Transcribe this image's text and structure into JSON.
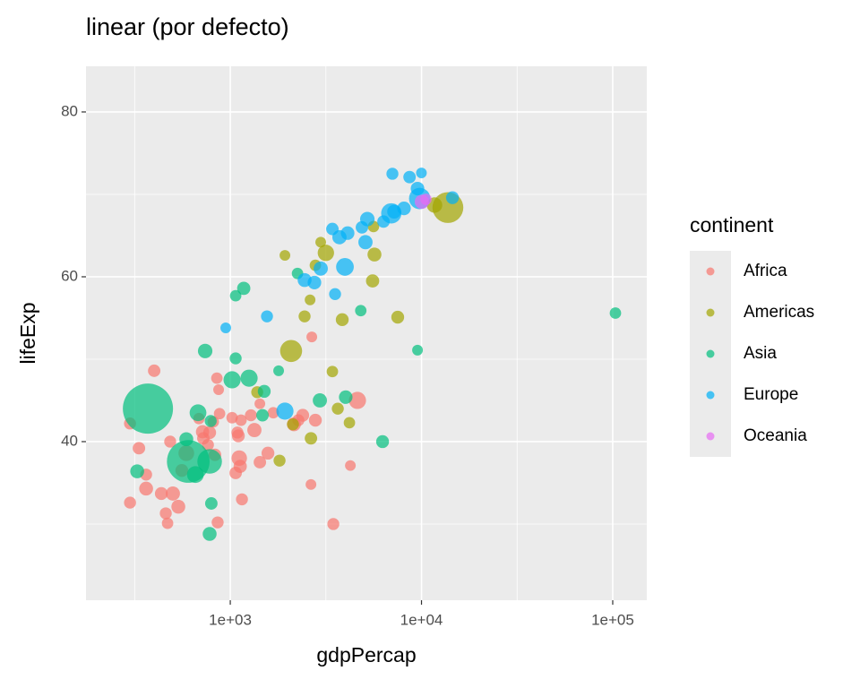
{
  "chart_data": {
    "type": "scatter",
    "title": "linear (por defecto)",
    "x_label": "gdpPercap",
    "y_label": "lifeExp",
    "legend_title": "continent",
    "legend_position": "right",
    "x_log_scale": true,
    "grid": true,
    "xlim": [
      176,
      150700
    ],
    "ylim": [
      20.76,
      85.54
    ],
    "xticks": [
      {
        "value": 1000,
        "label": "1e+03"
      },
      {
        "value": 10000,
        "label": "1e+04"
      },
      {
        "value": 100000,
        "label": "1e+05"
      }
    ],
    "yticks": [
      40,
      60,
      80
    ],
    "x_minor_ticks": [
      316.23,
      3162.3,
      31623
    ],
    "y_minor_ticks": [
      30,
      50,
      70
    ],
    "series": [
      {
        "name": "Africa",
        "color": "#F8766D",
        "x": [
          299,
          299,
          333,
          363,
          363,
          400,
          436,
          460,
          470,
          485,
          501,
          535,
          558,
          589,
          686,
          716,
          723,
          764,
          780,
          815,
          832,
          851,
          859,
          869,
          879,
          1022,
          1067,
          1090,
          1102,
          1114,
          1127,
          1138,
          1151,
          1282,
          1337,
          1428,
          1428,
          1574,
          1679,
          2152,
          2270,
          2393,
          2642,
          2669,
          2786,
          3459,
          4246,
          4624
        ],
        "values": [
          42.2,
          32.6,
          39.2,
          36.0,
          34.3,
          48.6,
          33.7,
          31.3,
          30.1,
          40.0,
          33.7,
          32.1,
          36.5,
          38.6,
          42.8,
          41.2,
          40.4,
          39.6,
          41.1,
          42.4,
          38.4,
          47.7,
          30.2,
          46.3,
          43.4,
          42.9,
          36.2,
          41.1,
          40.7,
          38.0,
          37.0,
          42.6,
          33.0,
          43.2,
          41.4,
          37.5,
          44.6,
          38.6,
          43.5,
          42.1,
          42.6,
          43.2,
          34.8,
          52.7,
          42.6,
          30.0,
          37.1,
          45.0
        ],
        "size": [
          3,
          3,
          4,
          3,
          8,
          4,
          5,
          3,
          2,
          3,
          9,
          8,
          5,
          15,
          2,
          6,
          4,
          3,
          5,
          2,
          4,
          2,
          3,
          1,
          2,
          2,
          4,
          3,
          5,
          14,
          6,
          2,
          3,
          3,
          9,
          4,
          1,
          5,
          2,
          8,
          3,
          5,
          1,
          1,
          5,
          3,
          1,
          22
        ]
      },
      {
        "name": "Americas",
        "color": "#A3A500",
        "x": [
          1383,
          1810,
          1931,
          2080,
          2127,
          2447,
          2614,
          2642,
          2786,
          2972,
          3162,
          3420,
          3850,
          3650,
          4198,
          5675,
          5550,
          5610,
          7510,
          11700,
          13740
        ],
        "values": [
          46.0,
          37.7,
          62.6,
          51.0,
          42.1,
          55.2,
          57.2,
          40.4,
          61.4,
          64.2,
          62.9,
          48.5,
          54.8,
          44.0,
          42.3,
          62.7,
          59.5,
          66.1,
          55.1,
          68.7,
          68.4
        ],
        "size": [
          3,
          3,
          1,
          56,
          3,
          3,
          1,
          4,
          2,
          1,
          18,
          2,
          5,
          3,
          2,
          8,
          6,
          2,
          5,
          14,
          157
        ]
      },
      {
        "name": "Asia",
        "color": "#00BF7D",
        "x": [
          326,
          371,
          603,
          657,
          589,
          678,
          739,
          780,
          780,
          790,
          796,
          1067,
          1176,
          1067,
          1022,
          1254,
          1505,
          1790,
          1474,
          2247,
          2941,
          4015,
          4813,
          6257,
          9530,
          103300
        ],
        "values": [
          36.4,
          44.0,
          37.6,
          36.0,
          40.3,
          43.5,
          51.0,
          28.8,
          37.6,
          42.5,
          32.5,
          57.7,
          58.6,
          50.1,
          47.5,
          47.7,
          46.1,
          48.6,
          43.2,
          60.4,
          45.0,
          45.4,
          55.9,
          40.0,
          51.1,
          55.6
        ],
        "size": [
          8,
          556,
          372,
          20,
          8,
          20,
          10,
          8,
          80,
          3,
          4,
          2,
          6,
          3,
          22,
          22,
          5,
          1,
          4,
          2,
          9,
          7,
          2,
          5,
          1,
          2
        ]
      },
      {
        "name": "Europe",
        "color": "#00B0F6",
        "x": [
          947,
          1556,
          1931,
          2447,
          2755,
          2972,
          3420,
          3532,
          3723,
          3978,
          4108,
          4880,
          5093,
          5208,
          6328,
          7044,
          7195,
          8100,
          8660,
          9530,
          9990,
          9780,
          14520,
          6950
        ],
        "values": [
          53.8,
          55.2,
          43.7,
          59.6,
          59.3,
          61.0,
          65.8,
          57.9,
          64.8,
          61.2,
          65.3,
          66.0,
          64.2,
          67.0,
          66.7,
          72.5,
          67.9,
          68.3,
          72.1,
          70.7,
          72.6,
          69.5,
          69.6,
          67.7
        ],
        "size": [
          1,
          3,
          22,
          8,
          7,
          9,
          4,
          3,
          9,
          25,
          7,
          4,
          9,
          10,
          4,
          3,
          8,
          7,
          4,
          7,
          1,
          50,
          5,
          42
        ]
      },
      {
        "name": "Oceania",
        "color": "#E76BF3",
        "x": [
          10040,
          10557
        ],
        "values": [
          69.1,
          69.4
        ],
        "size": [
          9,
          2
        ]
      }
    ]
  }
}
